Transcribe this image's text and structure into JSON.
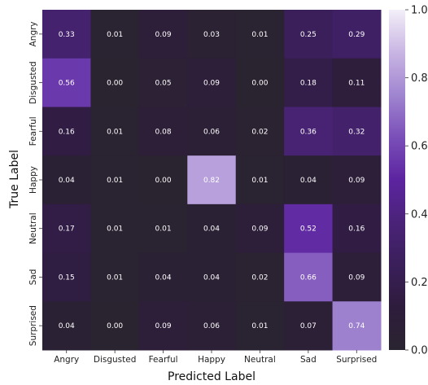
{
  "chart_data": {
    "type": "heatmap",
    "title": "",
    "xlabel": "Predicted Label",
    "ylabel": "True Label",
    "x_categories": [
      "Angry",
      "Disgusted",
      "Fearful",
      "Happy",
      "Neutral",
      "Sad",
      "Surprised"
    ],
    "y_categories": [
      "Angry",
      "Disgusted",
      "Fearful",
      "Happy",
      "Neutral",
      "Sad",
      "Surprised"
    ],
    "values": [
      [
        0.33,
        0.01,
        0.09,
        0.03,
        0.01,
        0.25,
        0.29
      ],
      [
        0.56,
        0.0,
        0.05,
        0.09,
        0.0,
        0.18,
        0.11
      ],
      [
        0.16,
        0.01,
        0.08,
        0.06,
        0.02,
        0.36,
        0.32
      ],
      [
        0.04,
        0.01,
        0.0,
        0.82,
        0.01,
        0.04,
        0.09
      ],
      [
        0.17,
        0.01,
        0.01,
        0.04,
        0.09,
        0.52,
        0.16
      ],
      [
        0.15,
        0.01,
        0.04,
        0.04,
        0.02,
        0.66,
        0.09
      ],
      [
        0.04,
        0.0,
        0.09,
        0.06,
        0.01,
        0.07,
        0.74
      ]
    ],
    "value_format": "0.00",
    "colorbar": {
      "range": [
        0.0,
        1.0
      ],
      "ticks": [
        0.0,
        0.2,
        0.4,
        0.6,
        0.8,
        1.0
      ],
      "tick_labels": [
        "0.0",
        "0.2",
        "0.4",
        "0.6",
        "0.8",
        "1.0"
      ],
      "colors": [
        "#2a2430",
        "#2e1c3c",
        "#3a1f5a",
        "#4a2378",
        "#5c24a0",
        "#7a4fb8",
        "#a085d0",
        "#c9b5e3",
        "#f3eff8"
      ]
    },
    "grid": false,
    "legend": "colorbar-right"
  }
}
